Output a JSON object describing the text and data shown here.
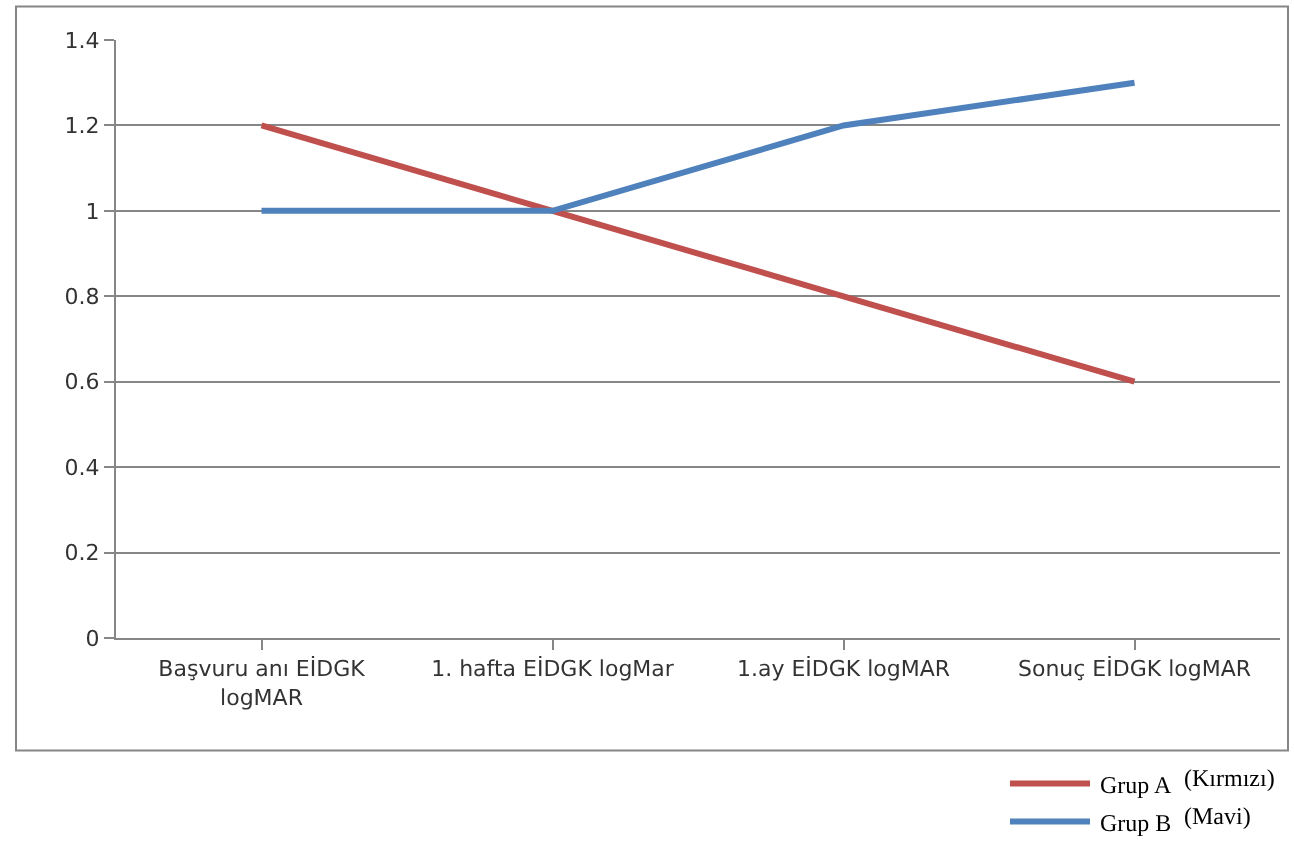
{
  "chart_data": {
    "type": "line",
    "categories": [
      "Başvuru anı EİDGK logMAR",
      "1. hafta EİDGK logMar",
      "1.ay EİDGK logMAR",
      "Sonuç EİDGK logMAR"
    ],
    "series": [
      {
        "name": "Grup A",
        "color": "#c0504d",
        "values": [
          1.2,
          1.0,
          0.8,
          0.6
        ]
      },
      {
        "name": "Grup B",
        "color": "#4f81bd",
        "values": [
          1.0,
          1.0,
          1.2,
          1.3
        ]
      }
    ],
    "annotations": [
      "(Kırmızı)",
      "(Mavi)"
    ],
    "ylim": [
      0,
      1.4
    ],
    "yticks": [
      0,
      0.2,
      0.4,
      0.6,
      0.8,
      1,
      1.2,
      1.4
    ],
    "grid": "y",
    "legend": "bottom right",
    "marker": "none",
    "line_style": "solid"
  }
}
